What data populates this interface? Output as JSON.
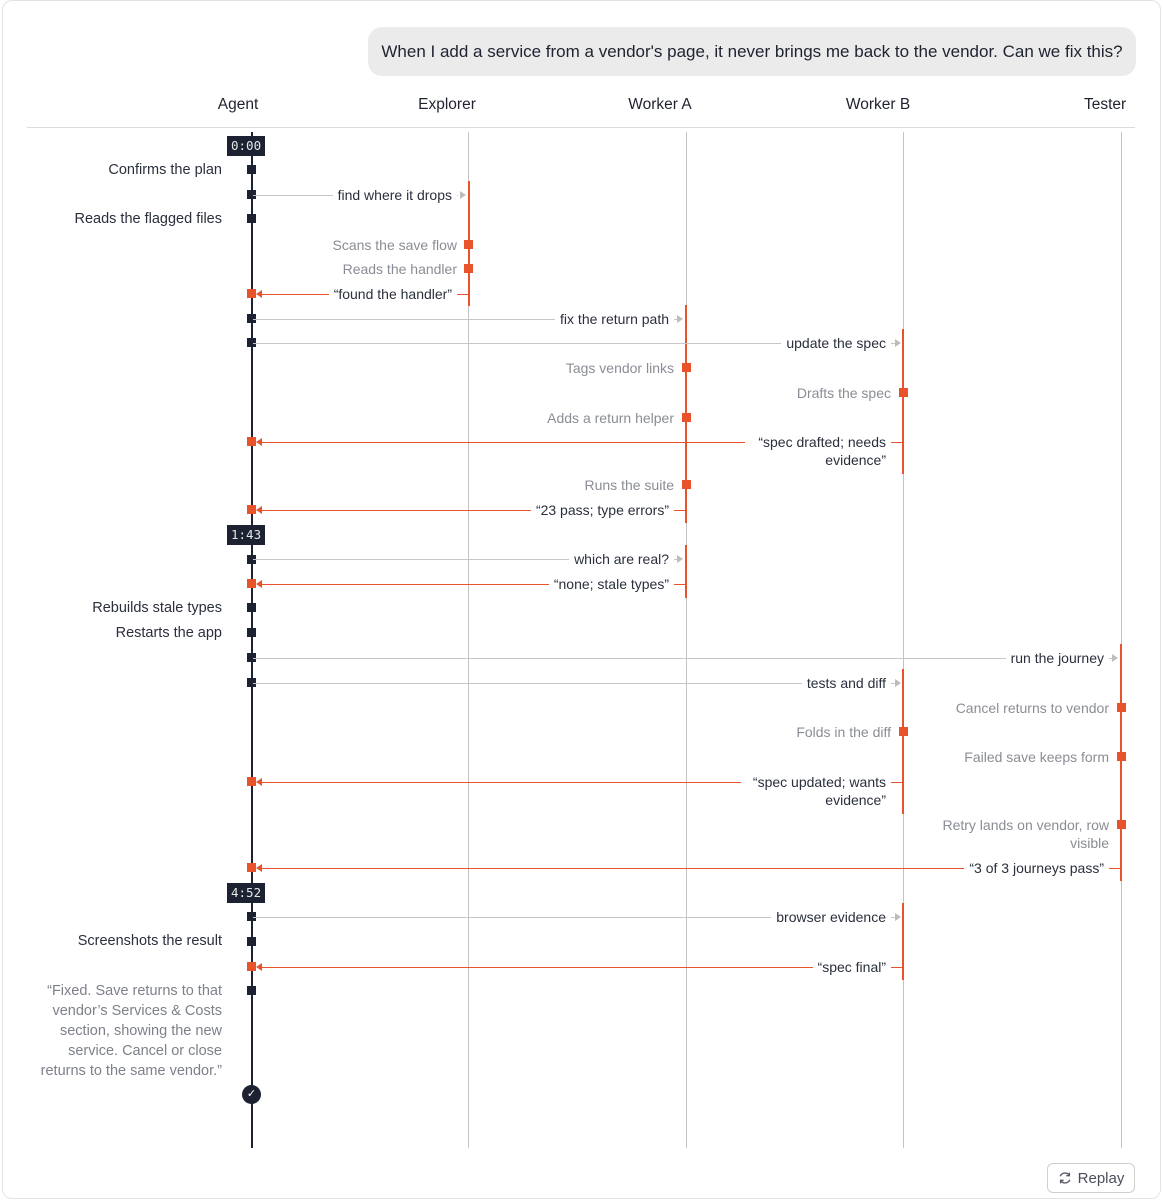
{
  "prompt": "When I add a service from a vendor's page, it never brings me back to the vendor. Can we fix this?",
  "lanes": {
    "agent": "Agent",
    "explorer": "Explorer",
    "worker_a": "Worker A",
    "worker_b": "Worker B",
    "tester": "Tester"
  },
  "timestamps": [
    "0:00",
    "1:43",
    "4:52"
  ],
  "agent_notes": {
    "confirms": "Confirms the plan",
    "reads": "Reads the flagged files",
    "rebuilds": "Rebuilds stale types",
    "restarts": "Restarts the app",
    "screenshots": "Screenshots the result",
    "final": "“Fixed. Save returns to that vendor’s Services & Costs section, showing the new service. Cancel or close returns to the same vendor.”"
  },
  "messages": {
    "m1": "find where it drops",
    "m2": "“found the handler”",
    "m3": "fix the return path",
    "m4": "update the spec",
    "m5": "“spec drafted; needs evidence”",
    "m6": "“23 pass; type errors”",
    "m7": "which are real?",
    "m8": "“none; stale types”",
    "m9": "run the journey",
    "m10": "tests and diff",
    "m11": "“spec updated; wants evidence”",
    "m12": "“3 of 3 journeys pass”",
    "m13": "browser evidence",
    "m14": "“spec final”"
  },
  "notes": {
    "n1": "Scans the save flow",
    "n2": "Reads the handler",
    "n3": "Tags vendor links",
    "n4": "Adds a return helper",
    "n5": "Drafts the spec",
    "n6": "Runs the suite",
    "n7": "Cancel returns to vendor",
    "n8": "Folds in the diff",
    "n9": "Failed save keeps form",
    "n10": "Retry lands on vendor, row visible"
  },
  "replay": {
    "label": "Replay"
  },
  "colors": {
    "accent": "#e8532b",
    "dark": "#1d2232",
    "line": "#c4c4c4"
  }
}
